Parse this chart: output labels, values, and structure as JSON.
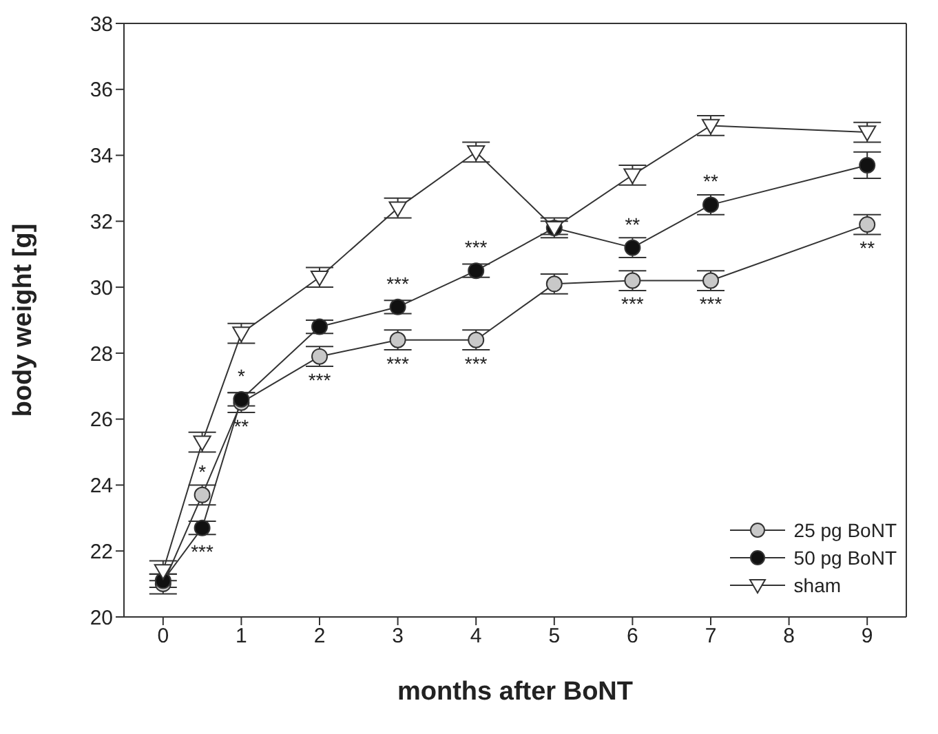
{
  "chart_data": {
    "type": "line",
    "xlabel": "months after BoNT",
    "ylabel": "body weight [g]",
    "x": [
      0,
      0.5,
      1,
      2,
      3,
      4,
      5,
      6,
      7,
      9
    ],
    "xlim": [
      -0.5,
      9.5
    ],
    "xticks": [
      0,
      1,
      2,
      3,
      4,
      5,
      6,
      7,
      8,
      9
    ],
    "ylim": [
      20,
      38
    ],
    "yticks": [
      20,
      22,
      24,
      26,
      28,
      30,
      32,
      34,
      36,
      38
    ],
    "grid": false,
    "legend": "bottom right",
    "series": [
      {
        "name": "25 pg BoNT",
        "color": "#c8c8c8",
        "marker": "circle",
        "values": [
          21.0,
          23.7,
          26.5,
          27.9,
          28.4,
          28.4,
          30.1,
          30.2,
          30.2,
          31.9
        ],
        "errors": [
          0.3,
          0.3,
          0.3,
          0.3,
          0.3,
          0.3,
          0.3,
          0.3,
          0.3,
          0.3
        ]
      },
      {
        "name": "50 pg BoNT",
        "color": "#111111",
        "marker": "circle",
        "values": [
          21.1,
          22.7,
          26.6,
          28.8,
          29.4,
          30.5,
          31.8,
          31.2,
          32.5,
          33.7
        ],
        "errors": [
          0.2,
          0.2,
          0.2,
          0.2,
          0.2,
          0.2,
          0.2,
          0.3,
          0.3,
          0.4
        ]
      },
      {
        "name": "sham",
        "color": "#ffffff",
        "marker": "triangle",
        "values": [
          21.4,
          25.3,
          28.6,
          30.3,
          32.4,
          34.1,
          31.8,
          33.4,
          34.9,
          34.7
        ],
        "errors": [
          0.3,
          0.3,
          0.3,
          0.3,
          0.3,
          0.3,
          0.3,
          0.3,
          0.3,
          0.3
        ]
      }
    ],
    "annotations": [
      {
        "text": "*",
        "x": 0.5,
        "y": 23.7
      },
      {
        "text": "***",
        "x": 0.5,
        "y": 22.7
      },
      {
        "text": "*",
        "x": 1,
        "y": 26.6
      },
      {
        "text": "**",
        "x": 1,
        "y": 26.5
      },
      {
        "text": "***",
        "x": 2,
        "y": 27.9
      },
      {
        "text": "***",
        "x": 3,
        "y": 29.4
      },
      {
        "text": "***",
        "x": 3,
        "y": 28.4
      },
      {
        "text": "***",
        "x": 4,
        "y": 30.5
      },
      {
        "text": "***",
        "x": 4,
        "y": 28.4
      },
      {
        "text": "**",
        "x": 6,
        "y": 31.2
      },
      {
        "text": "***",
        "x": 6,
        "y": 30.2
      },
      {
        "text": "**",
        "x": 7,
        "y": 32.5
      },
      {
        "text": "***",
        "x": 7,
        "y": 30.2
      },
      {
        "text": "**",
        "x": 9,
        "y": 31.9
      }
    ]
  }
}
